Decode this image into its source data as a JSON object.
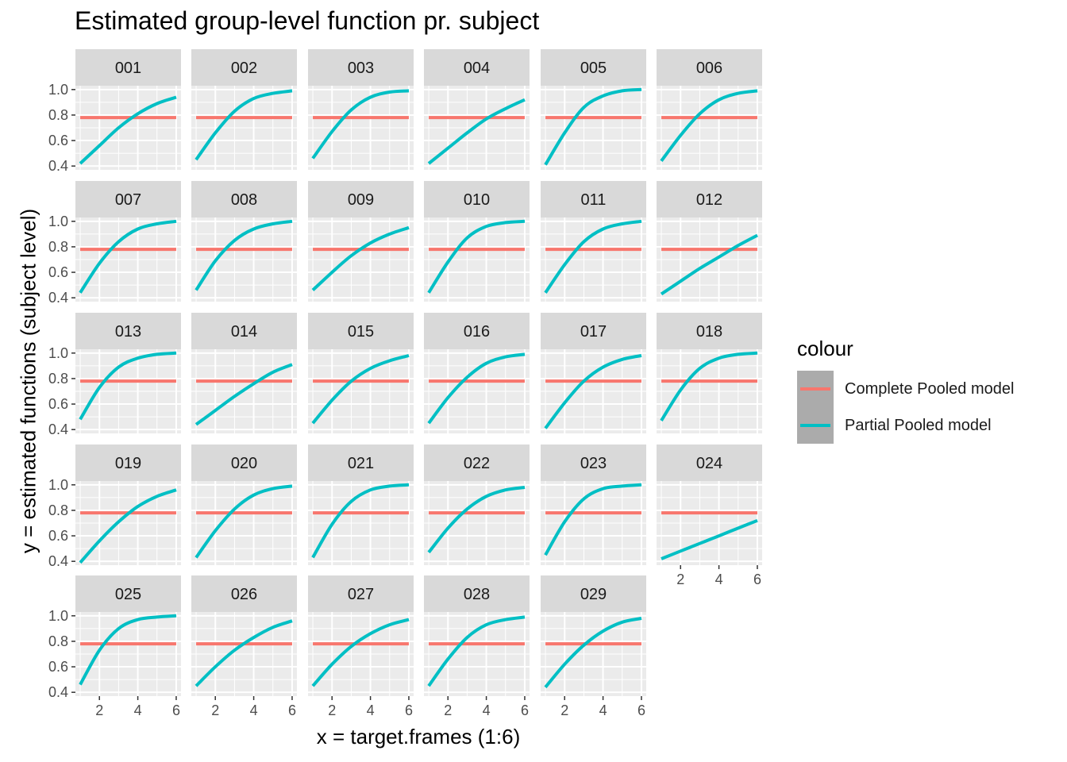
{
  "title": "Estimated group-level function pr. subject",
  "xlabel": "x = target.frames (1:6)",
  "ylabel": "y = estimated functions (subject level)",
  "legend": {
    "title": "colour",
    "items": [
      {
        "label": "Complete Pooled model",
        "color": "#F8766D"
      },
      {
        "label": "Partial Pooled model",
        "color": "#00BFC4"
      }
    ]
  },
  "colors": {
    "panel_bg": "#EBEBEB",
    "strip_bg": "#D9D9D9",
    "grid": "#FFFFFF",
    "legend_key_bg": "#ABABAB"
  },
  "chart_data": {
    "type": "line",
    "facets": "subject",
    "ncol": 6,
    "x": [
      1,
      2,
      3,
      4,
      5,
      6
    ],
    "xlim": [
      0.75,
      6.25
    ],
    "ylim": [
      0.37,
      1.03
    ],
    "x_ticks": [
      2,
      4,
      6
    ],
    "y_ticks": [
      0.4,
      0.6,
      0.8,
      1.0
    ],
    "y_tick_labels": [
      "0.4",
      "0.6",
      "0.8",
      "1.0"
    ],
    "grid": true,
    "legend_position": "right",
    "series_names": [
      "Complete Pooled model",
      "Partial Pooled model"
    ],
    "complete_pooled_value": 0.78,
    "panels": [
      {
        "label": "001",
        "complete": 0.78,
        "partial": [
          0.42,
          0.56,
          0.7,
          0.81,
          0.89,
          0.94
        ]
      },
      {
        "label": "002",
        "complete": 0.78,
        "partial": [
          0.45,
          0.66,
          0.83,
          0.93,
          0.97,
          0.99
        ]
      },
      {
        "label": "003",
        "complete": 0.78,
        "partial": [
          0.46,
          0.67,
          0.84,
          0.94,
          0.98,
          0.99
        ]
      },
      {
        "label": "004",
        "complete": 0.78,
        "partial": [
          0.42,
          0.54,
          0.66,
          0.77,
          0.85,
          0.92
        ]
      },
      {
        "label": "005",
        "complete": 0.78,
        "partial": [
          0.41,
          0.66,
          0.86,
          0.95,
          0.99,
          1.0
        ]
      },
      {
        "label": "006",
        "complete": 0.78,
        "partial": [
          0.44,
          0.64,
          0.81,
          0.92,
          0.97,
          0.99
        ]
      },
      {
        "label": "007",
        "complete": 0.78,
        "partial": [
          0.44,
          0.67,
          0.84,
          0.94,
          0.98,
          1.0
        ]
      },
      {
        "label": "008",
        "complete": 0.78,
        "partial": [
          0.46,
          0.69,
          0.85,
          0.94,
          0.98,
          1.0
        ]
      },
      {
        "label": "009",
        "complete": 0.78,
        "partial": [
          0.46,
          0.6,
          0.73,
          0.83,
          0.9,
          0.95
        ]
      },
      {
        "label": "010",
        "complete": 0.78,
        "partial": [
          0.44,
          0.68,
          0.87,
          0.96,
          0.99,
          1.0
        ]
      },
      {
        "label": "011",
        "complete": 0.78,
        "partial": [
          0.44,
          0.66,
          0.84,
          0.94,
          0.98,
          1.0
        ]
      },
      {
        "label": "012",
        "complete": 0.78,
        "partial": [
          0.43,
          0.53,
          0.63,
          0.72,
          0.81,
          0.89
        ]
      },
      {
        "label": "013",
        "complete": 0.78,
        "partial": [
          0.48,
          0.73,
          0.89,
          0.96,
          0.99,
          1.0
        ]
      },
      {
        "label": "014",
        "complete": 0.78,
        "partial": [
          0.44,
          0.55,
          0.66,
          0.76,
          0.85,
          0.91
        ]
      },
      {
        "label": "015",
        "complete": 0.78,
        "partial": [
          0.45,
          0.63,
          0.78,
          0.88,
          0.94,
          0.98
        ]
      },
      {
        "label": "016",
        "complete": 0.78,
        "partial": [
          0.45,
          0.65,
          0.81,
          0.92,
          0.97,
          0.99
        ]
      },
      {
        "label": "017",
        "complete": 0.78,
        "partial": [
          0.41,
          0.61,
          0.78,
          0.89,
          0.95,
          0.98
        ]
      },
      {
        "label": "018",
        "complete": 0.78,
        "partial": [
          0.47,
          0.71,
          0.88,
          0.96,
          0.99,
          1.0
        ]
      },
      {
        "label": "019",
        "complete": 0.78,
        "partial": [
          0.39,
          0.56,
          0.71,
          0.83,
          0.91,
          0.96
        ]
      },
      {
        "label": "020",
        "complete": 0.78,
        "partial": [
          0.43,
          0.64,
          0.81,
          0.92,
          0.97,
          0.99
        ]
      },
      {
        "label": "021",
        "complete": 0.78,
        "partial": [
          0.43,
          0.69,
          0.87,
          0.96,
          0.99,
          1.0
        ]
      },
      {
        "label": "022",
        "complete": 0.78,
        "partial": [
          0.47,
          0.66,
          0.81,
          0.91,
          0.96,
          0.98
        ]
      },
      {
        "label": "023",
        "complete": 0.78,
        "partial": [
          0.45,
          0.71,
          0.89,
          0.97,
          0.99,
          1.0
        ]
      },
      {
        "label": "024",
        "complete": 0.78,
        "partial": [
          0.42,
          0.48,
          0.54,
          0.6,
          0.66,
          0.72
        ]
      },
      {
        "label": "025",
        "complete": 0.78,
        "partial": [
          0.46,
          0.73,
          0.9,
          0.97,
          0.99,
          1.0
        ]
      },
      {
        "label": "026",
        "complete": 0.78,
        "partial": [
          0.45,
          0.6,
          0.73,
          0.83,
          0.91,
          0.96
        ]
      },
      {
        "label": "027",
        "complete": 0.78,
        "partial": [
          0.45,
          0.62,
          0.76,
          0.86,
          0.93,
          0.97
        ]
      },
      {
        "label": "028",
        "complete": 0.78,
        "partial": [
          0.45,
          0.66,
          0.83,
          0.93,
          0.97,
          0.99
        ]
      },
      {
        "label": "029",
        "complete": 0.78,
        "partial": [
          0.44,
          0.62,
          0.77,
          0.88,
          0.95,
          0.98
        ]
      }
    ]
  }
}
